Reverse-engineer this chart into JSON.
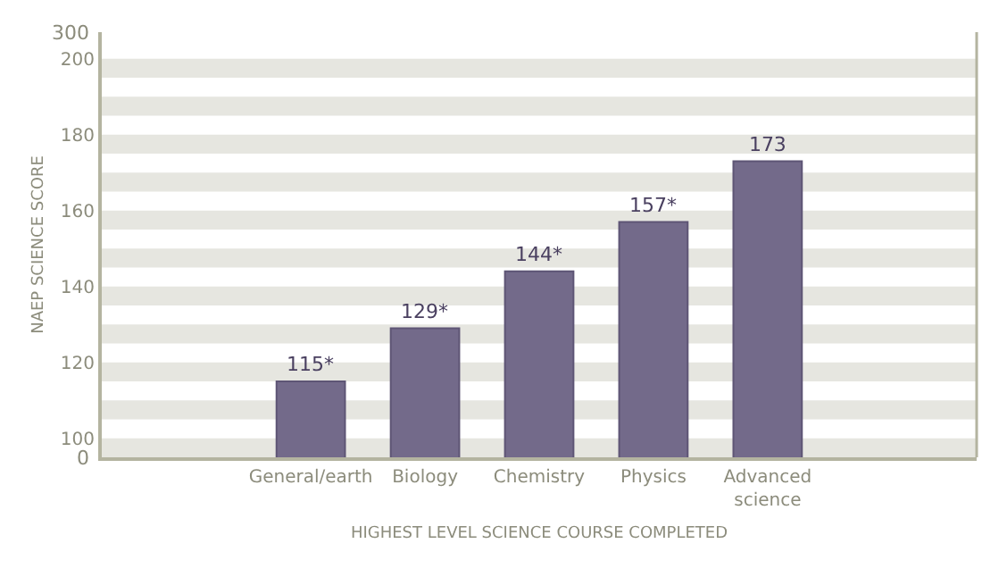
{
  "chart_data": {
    "type": "bar",
    "xlabel": "HIGHEST LEVEL SCIENCE COURSE COMPLETED",
    "ylabel": "NAEP SCIENCE SCORE",
    "categories": [
      null,
      "General/earth",
      "Biology",
      "Chemistry",
      "Physics",
      "Advanced science",
      null
    ],
    "values": [
      null,
      115,
      129,
      144,
      157,
      173,
      null
    ],
    "value_labels": [
      null,
      "115*",
      "129*",
      "144*",
      "157*",
      "173",
      null
    ],
    "color": "#736a8a",
    "ylim": [
      95,
      207
    ],
    "yticks": [
      100,
      120,
      140,
      160,
      180,
      200
    ],
    "annotations": [
      "0",
      "300"
    ],
    "grid": false,
    "legend": false,
    "bands": [
      {
        "axis": "y",
        "from": 95,
        "to": 100,
        "color": "#e6e6e0"
      },
      {
        "axis": "y",
        "from": 105,
        "to": 110,
        "color": "#e6e6e0"
      },
      {
        "axis": "y",
        "from": 115,
        "to": 120,
        "color": "#e6e6e0"
      },
      {
        "axis": "y",
        "from": 125,
        "to": 130,
        "color": "#e6e6e0"
      },
      {
        "axis": "y",
        "from": 135,
        "to": 140,
        "color": "#e6e6e0"
      },
      {
        "axis": "y",
        "from": 145,
        "to": 150,
        "color": "#e6e6e0"
      },
      {
        "axis": "y",
        "from": 155,
        "to": 160,
        "color": "#e6e6e0"
      },
      {
        "axis": "y",
        "from": 165,
        "to": 170,
        "color": "#e6e6e0"
      },
      {
        "axis": "y",
        "from": 175,
        "to": 180,
        "color": "#e6e6e0"
      },
      {
        "axis": "y",
        "from": 185,
        "to": 190,
        "color": "#e6e6e0"
      },
      {
        "axis": "y",
        "from": 195,
        "to": 200,
        "color": "#e6e6e0"
      }
    ]
  }
}
